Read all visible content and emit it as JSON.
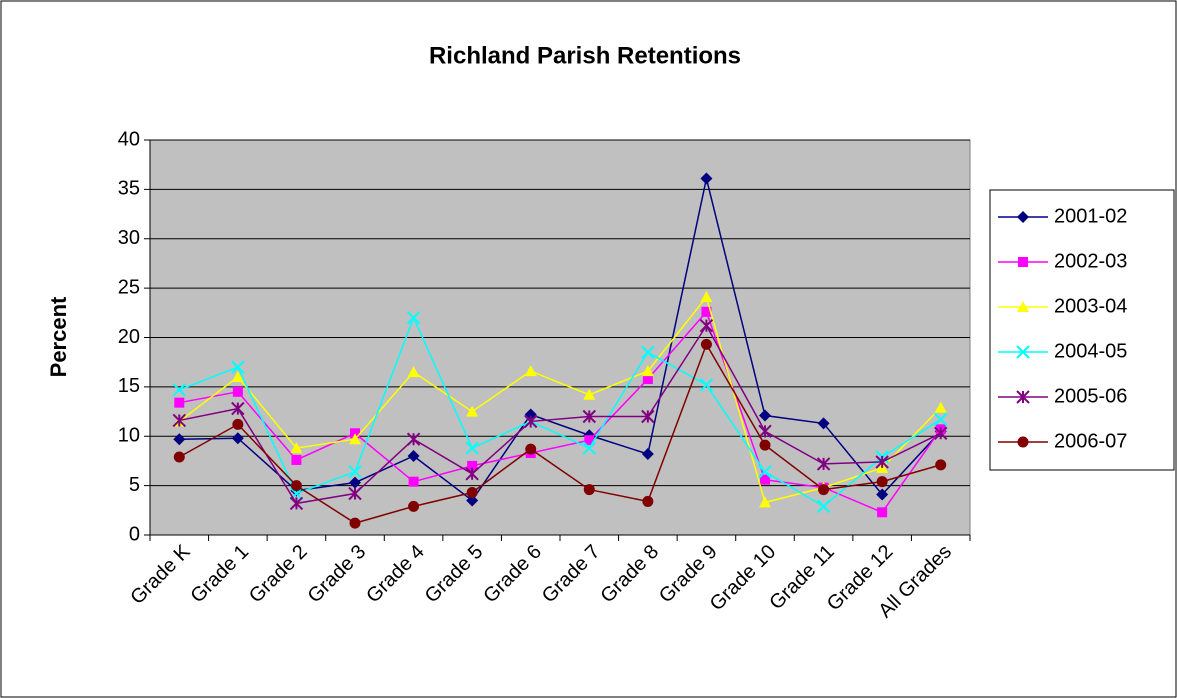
{
  "chart_data": {
    "type": "line",
    "title": "Richland Parish Retentions",
    "y_label": "Percent",
    "categories": [
      "Grade K",
      "Grade 1",
      "Grade 2",
      "Grade 3",
      "Grade 4",
      "Grade 5",
      "Grade 6",
      "Grade 7",
      "Grade 8",
      "Grade 9",
      "Grade 10",
      "Grade 11",
      "Grade 12",
      "All Grades"
    ],
    "series": [
      {
        "name": "2001-02",
        "color": "#000080",
        "values": [
          9.7,
          9.8,
          4.5,
          5.3,
          8,
          3.5,
          12.2,
          10.1,
          8.2,
          36.1,
          12.1,
          11.3,
          4.1,
          10.5
        ]
      },
      {
        "name": "2002-03",
        "color": "#ff00ff",
        "values": [
          13.4,
          14.5,
          7.6,
          10.3,
          5.4,
          7,
          8.3,
          9.6,
          15.8,
          22.6,
          5.6,
          4.8,
          2.3,
          10.7
        ]
      },
      {
        "name": "2003-04",
        "color": "#ffff00",
        "values": [
          11.5,
          16,
          8.8,
          9.7,
          16.5,
          12.5,
          16.6,
          14.2,
          16.6,
          24.1,
          3.3,
          4.8,
          6.8,
          12.9
        ]
      },
      {
        "name": "2004-05",
        "color": "#00ffff",
        "values": [
          14.7,
          17,
          4.2,
          6.4,
          22,
          8.8,
          11.5,
          8.8,
          18.5,
          15.2,
          6.4,
          2.9,
          7.9,
          11.7
        ]
      },
      {
        "name": "2005-06",
        "color": "#800080",
        "values": [
          11.6,
          12.8,
          3.2,
          4.2,
          9.7,
          6.2,
          11.5,
          12,
          12,
          21.2,
          10.5,
          7.2,
          7.4,
          10.3
        ]
      },
      {
        "name": "2006-07",
        "color": "#800000",
        "values": [
          7.9,
          11.2,
          5,
          1.2,
          2.9,
          4.3,
          8.7,
          4.6,
          3.4,
          19.3,
          9.1,
          4.6,
          5.4,
          7.1
        ]
      }
    ],
    "ylim": [
      0,
      40
    ],
    "yticks": [
      0,
      5,
      10,
      15,
      20,
      25,
      30,
      35,
      40
    ],
    "grid": true,
    "legend": "right"
  }
}
